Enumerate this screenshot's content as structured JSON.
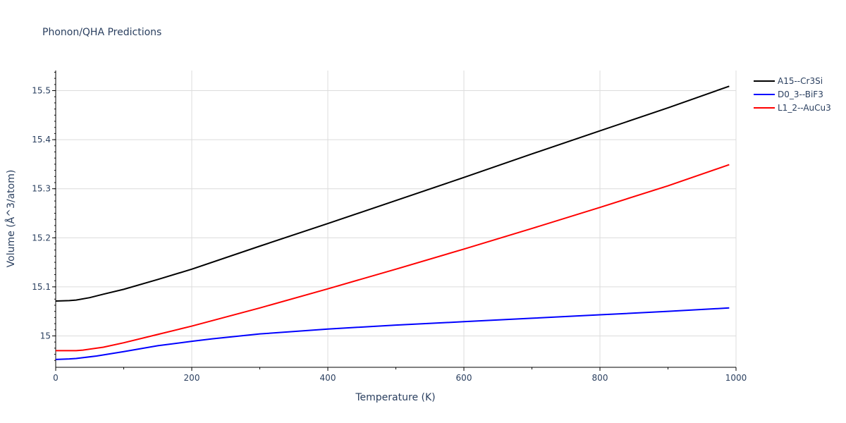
{
  "chart_data": {
    "type": "line",
    "title": "Phonon/QHA Predictions",
    "xlabel": "Temperature (K)",
    "ylabel": "Volume (Å^3/atom)",
    "xlim": [
      0,
      1000
    ],
    "ylim": [
      14.936,
      15.541
    ],
    "x_ticks": [
      0,
      200,
      400,
      600,
      800,
      1000
    ],
    "y_ticks": [
      15,
      15.1,
      15.2,
      15.3,
      15.4,
      15.5
    ],
    "grid": true,
    "legend_position": "top-right",
    "series": [
      {
        "name": "A15--Cr3Si",
        "color": "#000000",
        "x": [
          0,
          20,
          30,
          50,
          70,
          100,
          150,
          200,
          300,
          400,
          500,
          600,
          700,
          800,
          900,
          990
        ],
        "y": [
          15.071,
          15.072,
          15.073,
          15.078,
          15.085,
          15.095,
          15.115,
          15.136,
          15.183,
          15.229,
          15.276,
          15.323,
          15.371,
          15.418,
          15.465,
          15.509
        ]
      },
      {
        "name": "D0_3--BiF3",
        "color": "#0000ff",
        "x": [
          0,
          20,
          30,
          60,
          100,
          150,
          200,
          230,
          300,
          400,
          500,
          600,
          700,
          800,
          900,
          990
        ],
        "y": [
          14.952,
          14.953,
          14.954,
          14.959,
          14.968,
          14.98,
          14.989,
          14.994,
          15.004,
          15.014,
          15.022,
          15.029,
          15.036,
          15.043,
          15.05,
          15.057
        ]
      },
      {
        "name": "L1_2--AuCu3",
        "color": "#ff0000",
        "x": [
          0,
          20,
          30,
          40,
          70,
          100,
          150,
          200,
          300,
          400,
          500,
          600,
          700,
          800,
          900,
          990
        ],
        "y": [
          14.97,
          14.97,
          14.97,
          14.971,
          14.977,
          14.986,
          15.003,
          15.02,
          15.057,
          15.096,
          15.136,
          15.177,
          15.219,
          15.262,
          15.306,
          15.349
        ]
      }
    ]
  }
}
